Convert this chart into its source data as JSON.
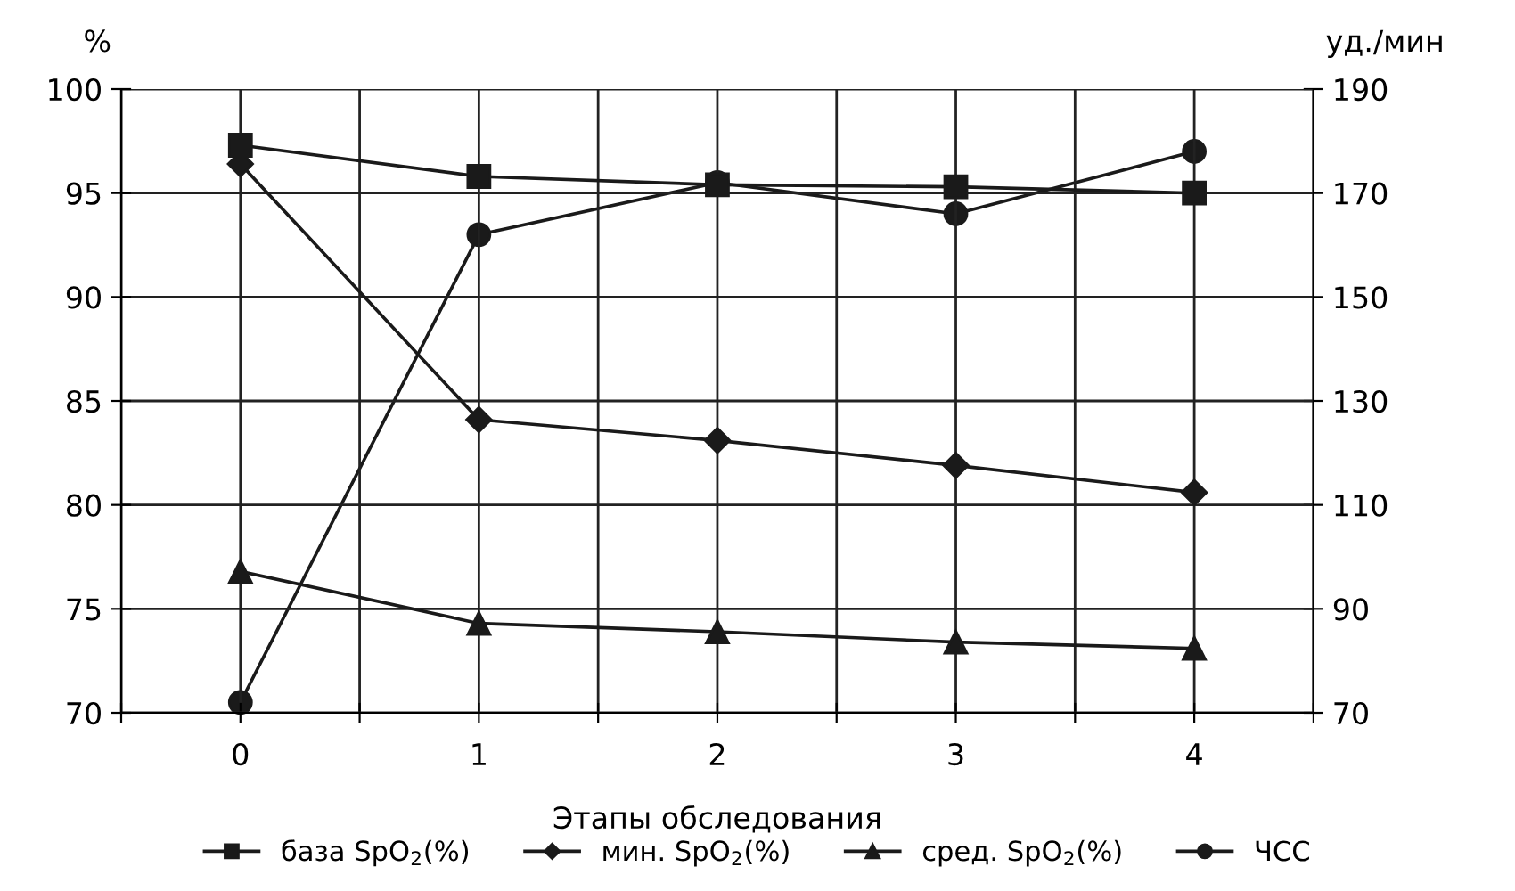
{
  "chart_data": {
    "type": "line",
    "xlabel": "Этапы обследования",
    "ylabel": "%",
    "y2label": "уд./мин",
    "x": [
      0,
      1,
      2,
      3,
      4
    ],
    "xlim": [
      -0.5,
      4.5
    ],
    "xticks": [
      {
        "value": -0.5,
        "label": null
      },
      0,
      {
        "value": 0.5,
        "label": null
      },
      1,
      {
        "value": 1.5,
        "label": null
      },
      2,
      {
        "value": 2.5,
        "label": null
      },
      3,
      {
        "value": 3.5,
        "label": null
      },
      4,
      {
        "value": 4.5,
        "label": null
      }
    ],
    "ylim": [
      70,
      100
    ],
    "yticks": [
      70,
      75,
      80,
      85,
      90,
      95,
      100
    ],
    "y2lim": [
      70,
      190
    ],
    "y2ticks": [
      70,
      90,
      110,
      130,
      150,
      170,
      190
    ],
    "grid": true,
    "legend": "bottom",
    "line_style": "solid",
    "series": [
      {
        "name": "база SpO$_{2}$(%)",
        "color": "#1a1a1a",
        "marker": "square",
        "values": [
          97.3,
          95.8,
          95.4,
          95.3,
          95.0
        ]
      },
      {
        "name": "мин. SpO$_{2}$(%)",
        "color": "#1a1a1a",
        "marker": "diamond",
        "values": [
          96.4,
          84.1,
          83.1,
          81.9,
          80.6
        ]
      },
      {
        "name": "сред. SpO$_{2}$(%)",
        "color": "#1a1a1a",
        "marker": "triangle",
        "values": [
          76.8,
          74.3,
          73.9,
          73.4,
          73.1
        ]
      },
      {
        "name": "ЧСС",
        "color": "#1a1a1a",
        "marker": "circle",
        "axis": "y2",
        "values": [
          72,
          162,
          172,
          166,
          178
        ]
      }
    ]
  }
}
